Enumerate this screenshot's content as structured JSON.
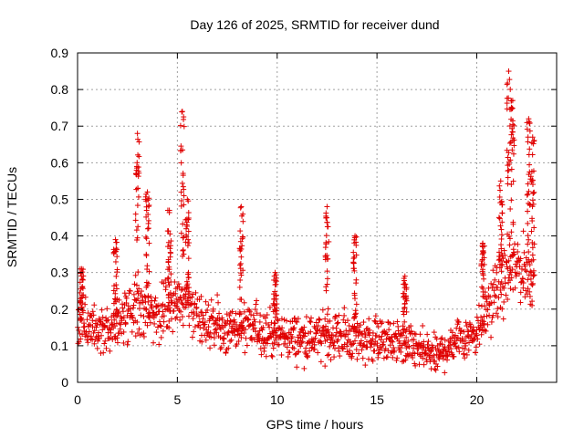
{
  "chart_data": {
    "type": "scatter",
    "title": "Day 126 of 2025, SRMTID for receiver dund",
    "xlabel": "GPS time / hours",
    "ylabel": "SRMTID / TECUs",
    "xlim": [
      0,
      24
    ],
    "ylim": [
      0,
      0.9
    ],
    "x_ticks": [
      0,
      5,
      10,
      15,
      20
    ],
    "y_ticks": [
      0,
      0.1,
      0.2,
      0.3,
      0.4,
      0.5,
      0.6,
      0.7,
      0.8,
      0.9
    ],
    "x_tick_labels": [
      "0",
      "5",
      "10",
      "15",
      "20"
    ],
    "y_tick_labels": [
      "0",
      "0.1",
      "0.2",
      "0.3",
      "0.4",
      "0.5",
      "0.6",
      "0.7",
      "0.8",
      "0.9"
    ],
    "grid": true,
    "marker": "plus",
    "color": "#e00000",
    "series": [
      {
        "name": "SRMTID",
        "x_range": [
          0,
          22.9
        ],
        "baseline_profile": [
          {
            "x": 0.0,
            "y": 0.17
          },
          {
            "x": 1.0,
            "y": 0.15
          },
          {
            "x": 2.0,
            "y": 0.16
          },
          {
            "x": 3.0,
            "y": 0.22
          },
          {
            "x": 4.0,
            "y": 0.18
          },
          {
            "x": 5.0,
            "y": 0.22
          },
          {
            "x": 6.0,
            "y": 0.19
          },
          {
            "x": 7.0,
            "y": 0.15
          },
          {
            "x": 8.0,
            "y": 0.14
          },
          {
            "x": 9.0,
            "y": 0.15
          },
          {
            "x": 10.0,
            "y": 0.13
          },
          {
            "x": 11.0,
            "y": 0.12
          },
          {
            "x": 12.0,
            "y": 0.12
          },
          {
            "x": 13.0,
            "y": 0.13
          },
          {
            "x": 14.0,
            "y": 0.12
          },
          {
            "x": 15.0,
            "y": 0.12
          },
          {
            "x": 16.0,
            "y": 0.11
          },
          {
            "x": 17.0,
            "y": 0.09
          },
          {
            "x": 18.0,
            "y": 0.07
          },
          {
            "x": 19.0,
            "y": 0.12
          },
          {
            "x": 20.0,
            "y": 0.14
          },
          {
            "x": 21.0,
            "y": 0.25
          },
          {
            "x": 22.0,
            "y": 0.32
          },
          {
            "x": 22.9,
            "y": 0.28
          }
        ],
        "peaks": [
          {
            "x": 0.2,
            "y": 0.31
          },
          {
            "x": 1.9,
            "y": 0.39
          },
          {
            "x": 3.0,
            "y": 0.68
          },
          {
            "x": 3.5,
            "y": 0.52
          },
          {
            "x": 4.6,
            "y": 0.47
          },
          {
            "x": 5.25,
            "y": 0.74
          },
          {
            "x": 5.5,
            "y": 0.5
          },
          {
            "x": 8.2,
            "y": 0.48
          },
          {
            "x": 9.9,
            "y": 0.3
          },
          {
            "x": 12.5,
            "y": 0.48
          },
          {
            "x": 13.9,
            "y": 0.4
          },
          {
            "x": 16.4,
            "y": 0.29
          },
          {
            "x": 20.3,
            "y": 0.38
          },
          {
            "x": 21.2,
            "y": 0.55
          },
          {
            "x": 21.6,
            "y": 0.85
          },
          {
            "x": 21.8,
            "y": 0.77
          },
          {
            "x": 22.6,
            "y": 0.72
          },
          {
            "x": 22.8,
            "y": 0.67
          }
        ]
      }
    ]
  }
}
